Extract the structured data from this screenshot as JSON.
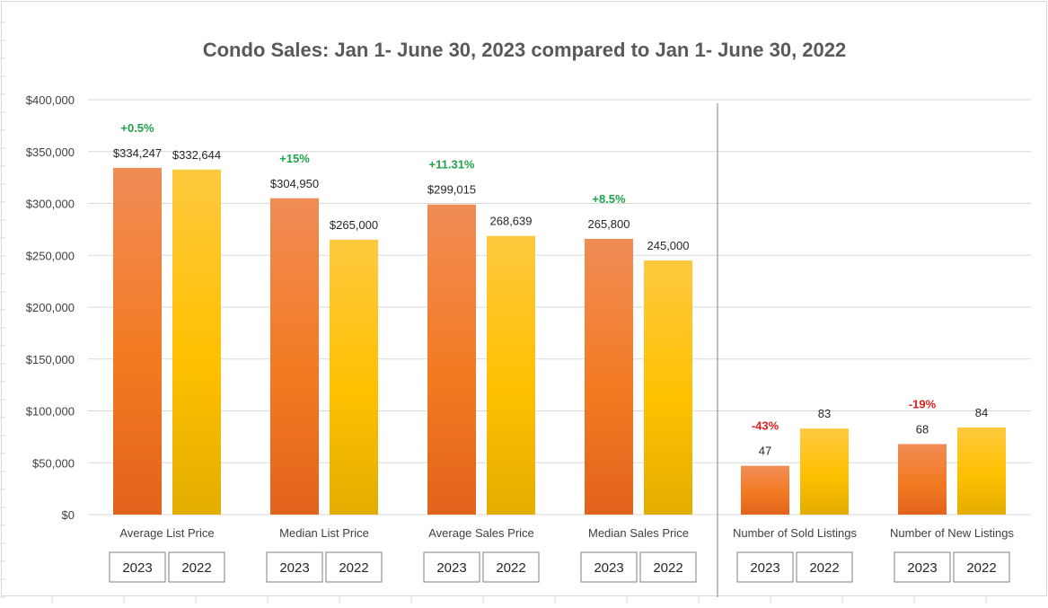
{
  "chart_data": {
    "type": "bar",
    "title": "Condo Sales: Jan 1- June 30, 2023 compared to Jan 1- June 30, 2022",
    "xlabel": "",
    "ylabel": "",
    "ylim": [
      0,
      400000
    ],
    "yticks": [
      0,
      50000,
      100000,
      150000,
      200000,
      250000,
      300000,
      350000,
      400000
    ],
    "ytick_labels": [
      "$0",
      "$50,000",
      "$100,000",
      "$150,000",
      "$200,000",
      "$250,000",
      "$300,000",
      "$350,000",
      "$400,000"
    ],
    "grid": true,
    "legend": "none",
    "colors": {
      "y2023": "#F07B35",
      "y2022": "#FFC000",
      "change_up": "#1FA34A",
      "change_down": "#E02020"
    },
    "groups": [
      {
        "category": "Average List Price",
        "change": "+0.5%",
        "direction": "up",
        "bars": [
          {
            "year": "2023",
            "value": 334247,
            "label": "$334,247"
          },
          {
            "year": "2022",
            "value": 332644,
            "label": "$332,644"
          }
        ]
      },
      {
        "category": "Median List Price",
        "change": "+15%",
        "direction": "up",
        "bars": [
          {
            "year": "2023",
            "value": 304950,
            "label": "$304,950"
          },
          {
            "year": "2022",
            "value": 265000,
            "label": "$265,000"
          }
        ]
      },
      {
        "category": "Average Sales Price",
        "change": "+11.31%",
        "direction": "up",
        "bars": [
          {
            "year": "2023",
            "value": 299015,
            "label": "$299,015"
          },
          {
            "year": "2022",
            "value": 268639,
            "label": "268,639"
          }
        ]
      },
      {
        "category": "Median Sales Price",
        "change": "+8.5%",
        "direction": "up",
        "bars": [
          {
            "year": "2023",
            "value": 265800,
            "label": "265,800"
          },
          {
            "year": "2022",
            "value": 245000,
            "label": "245,000"
          }
        ]
      },
      {
        "category": "Number of Sold Listings",
        "change": "-43%",
        "direction": "down",
        "bars": [
          {
            "year": "2023",
            "value": 47,
            "label": "47"
          },
          {
            "year": "2022",
            "value": 83,
            "label": "83"
          }
        ]
      },
      {
        "category": "Number of New Listings",
        "change": "-19%",
        "direction": "down",
        "bars": [
          {
            "year": "2023",
            "value": 68,
            "label": "68"
          },
          {
            "year": "2022",
            "value": 84,
            "label": "84"
          }
        ]
      }
    ]
  }
}
